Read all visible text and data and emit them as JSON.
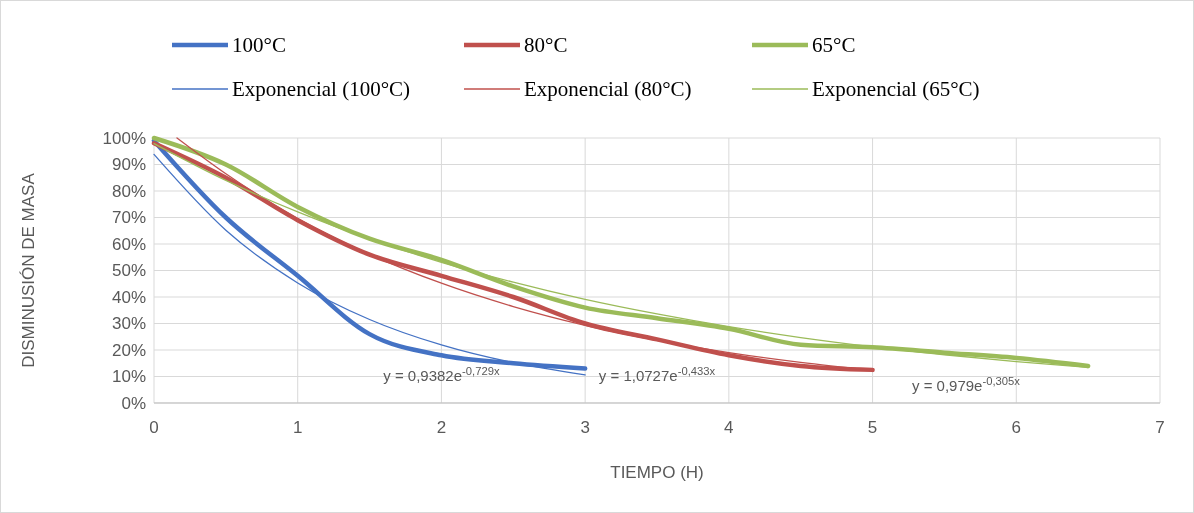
{
  "chart_data": {
    "type": "line",
    "xlabel": "TIEMPO (H)",
    "ylabel": "DISMINUSIÓN DE MASA",
    "xlim": [
      0,
      7
    ],
    "xticks": [
      0,
      1,
      2,
      3,
      4,
      5,
      6,
      7
    ],
    "ylim": [
      0,
      100
    ],
    "yticks": [
      {
        "value": 0,
        "label": "0%"
      },
      {
        "value": 10,
        "label": "10%"
      },
      {
        "value": 20,
        "label": "20%"
      },
      {
        "value": 30,
        "label": "30%"
      },
      {
        "value": 40,
        "label": "40%"
      },
      {
        "value": 50,
        "label": "50%"
      },
      {
        "value": 60,
        "label": "60%"
      },
      {
        "value": 70,
        "label": "70%"
      },
      {
        "value": 80,
        "label": "80%"
      },
      {
        "value": 90,
        "label": "90%"
      },
      {
        "value": 100,
        "label": "100%"
      }
    ],
    "grid": true,
    "legend": "top",
    "line_style": "solid",
    "series": [
      {
        "name": "100°C",
        "color": "#4472c4",
        "x": [
          0,
          0.5,
          1,
          1.5,
          2,
          2.5,
          3
        ],
        "values": [
          99,
          70,
          48,
          26,
          18,
          15,
          13
        ]
      },
      {
        "name": "80°C",
        "color": "#c0504d",
        "x": [
          0,
          0.5,
          1,
          1.5,
          2,
          2.5,
          3,
          3.5,
          4,
          4.5,
          5
        ],
        "values": [
          98,
          85,
          69,
          56,
          48,
          40,
          30,
          24,
          18,
          14,
          12.5
        ]
      },
      {
        "name": "65°C",
        "color": "#9bbb59",
        "x": [
          0,
          0.5,
          1,
          1.5,
          2,
          2.5,
          3,
          3.5,
          4,
          4.5,
          5,
          5.5,
          6,
          6.5
        ],
        "values": [
          100,
          90,
          74,
          62,
          54,
          44,
          36,
          32,
          28,
          22,
          21,
          19,
          17,
          14
        ]
      },
      {
        "name": "Exponencial (100°C)",
        "color": "#4472c4",
        "x": [
          0,
          0.5,
          1,
          1.5,
          2,
          2.5,
          3
        ],
        "values": [
          93.8,
          65.2,
          45.3,
          31.5,
          21.9,
          15.2,
          10.6
        ]
      },
      {
        "name": "Exponencial (80°C)",
        "color": "#c0504d",
        "x": [
          0.16,
          0.5,
          1,
          1.5,
          2,
          2.5,
          3,
          3.5,
          4,
          4.5,
          5
        ],
        "values": [
          100,
          86.5,
          69.6,
          56.1,
          45.2,
          36.4,
          29.3,
          23.6,
          19,
          15.3,
          12.3
        ]
      },
      {
        "name": "Exponencial (65°C)",
        "color": "#9bbb59",
        "x": [
          0,
          0.5,
          1,
          1.5,
          2,
          2.5,
          3,
          3.5,
          4,
          4.5,
          5,
          5.5,
          6,
          6.5
        ],
        "values": [
          97.9,
          84,
          72.1,
          61.9,
          53.1,
          45.6,
          39.1,
          33.6,
          28.8,
          24.7,
          21.2,
          18.2,
          15.6,
          13.4
        ]
      }
    ],
    "annotations": [
      "y = 0,9382e$^{-0,729x}$",
      "y = 1,0727e$^{-0,433x}$",
      "y = 0,979e$^{-0,305x}$"
    ]
  }
}
